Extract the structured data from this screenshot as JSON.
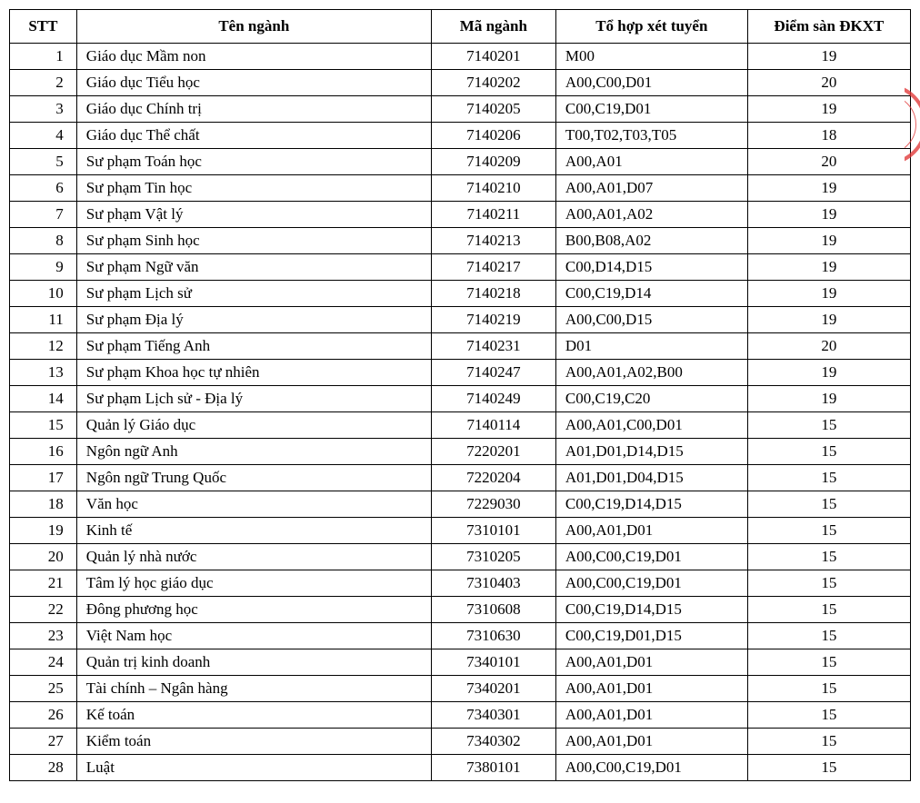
{
  "table": {
    "headers": {
      "stt": "STT",
      "name": "Tên ngành",
      "code": "Mã ngành",
      "combo": "Tổ hợp xét tuyển",
      "score": "Điểm sàn ĐKXT"
    },
    "rows": [
      {
        "stt": "1",
        "name": "Giáo dục Mầm non",
        "code": "7140201",
        "combo": "M00",
        "score": "19"
      },
      {
        "stt": "2",
        "name": "Giáo dục Tiểu học",
        "code": "7140202",
        "combo": "A00,C00,D01",
        "score": "20"
      },
      {
        "stt": "3",
        "name": "Giáo dục Chính trị",
        "code": "7140205",
        "combo": "C00,C19,D01",
        "score": "19"
      },
      {
        "stt": "4",
        "name": "Giáo dục Thể chất",
        "code": "7140206",
        "combo": "T00,T02,T03,T05",
        "score": "18"
      },
      {
        "stt": "5",
        "name": "Sư phạm Toán học",
        "code": "7140209",
        "combo": "A00,A01",
        "score": "20"
      },
      {
        "stt": "6",
        "name": "Sư phạm Tin học",
        "code": "7140210",
        "combo": "A00,A01,D07",
        "score": "19"
      },
      {
        "stt": "7",
        "name": "Sư phạm Vật lý",
        "code": "7140211",
        "combo": "A00,A01,A02",
        "score": "19"
      },
      {
        "stt": "8",
        "name": "Sư phạm Sinh học",
        "code": "7140213",
        "combo": "B00,B08,A02",
        "score": "19"
      },
      {
        "stt": "9",
        "name": "Sư phạm Ngữ văn",
        "code": "7140217",
        "combo": "C00,D14,D15",
        "score": "19"
      },
      {
        "stt": "10",
        "name": "Sư phạm Lịch sử",
        "code": "7140218",
        "combo": "C00,C19,D14",
        "score": "19"
      },
      {
        "stt": "11",
        "name": "Sư phạm Địa lý",
        "code": "7140219",
        "combo": "A00,C00,D15",
        "score": "19"
      },
      {
        "stt": "12",
        "name": "Sư phạm Tiếng Anh",
        "code": "7140231",
        "combo": "D01",
        "score": "20"
      },
      {
        "stt": "13",
        "name": "Sư phạm Khoa học tự nhiên",
        "code": "7140247",
        "combo": "A00,A01,A02,B00",
        "score": "19"
      },
      {
        "stt": "14",
        "name": "Sư phạm Lịch sử - Địa lý",
        "code": "7140249",
        "combo": "C00,C19,C20",
        "score": "19"
      },
      {
        "stt": "15",
        "name": "Quản lý Giáo dục",
        "code": "7140114",
        "combo": "A00,A01,C00,D01",
        "score": "15"
      },
      {
        "stt": "16",
        "name": "Ngôn ngữ Anh",
        "code": "7220201",
        "combo": "A01,D01,D14,D15",
        "score": "15"
      },
      {
        "stt": "17",
        "name": "Ngôn ngữ Trung Quốc",
        "code": "7220204",
        "combo": "A01,D01,D04,D15",
        "score": "15"
      },
      {
        "stt": "18",
        "name": "Văn học",
        "code": "7229030",
        "combo": "C00,C19,D14,D15",
        "score": "15"
      },
      {
        "stt": "19",
        "name": "Kinh tế",
        "code": "7310101",
        "combo": "A00,A01,D01",
        "score": "15"
      },
      {
        "stt": "20",
        "name": "Quản lý nhà nước",
        "code": "7310205",
        "combo": "A00,C00,C19,D01",
        "score": "15"
      },
      {
        "stt": "21",
        "name": "Tâm lý học giáo dục",
        "code": "7310403",
        "combo": "A00,C00,C19,D01",
        "score": "15"
      },
      {
        "stt": "22",
        "name": "Đông phương học",
        "code": "7310608",
        "combo": "C00,C19,D14,D15",
        "score": "15"
      },
      {
        "stt": "23",
        "name": "Việt Nam học",
        "code": "7310630",
        "combo": "C00,C19,D01,D15",
        "score": "15"
      },
      {
        "stt": "24",
        "name": "Quản trị kinh doanh",
        "code": "7340101",
        "combo": "A00,A01,D01",
        "score": "15"
      },
      {
        "stt": "25",
        "name": "Tài chính – Ngân hàng",
        "code": "7340201",
        "combo": "A00,A01,D01",
        "score": "15"
      },
      {
        "stt": "26",
        "name": "Kế toán",
        "code": "7340301",
        "combo": "A00,A01,D01",
        "score": "15"
      },
      {
        "stt": "27",
        "name": "Kiểm toán",
        "code": "7340302",
        "combo": "A00,A01,D01",
        "score": "15"
      },
      {
        "stt": "28",
        "name": "Luật",
        "code": "7380101",
        "combo": "A00,C00,C19,D01",
        "score": "15"
      }
    ],
    "styling": {
      "font_family": "Times New Roman",
      "header_fontsize": 17,
      "cell_fontsize": 17,
      "border_color": "#000000",
      "background_color": "#ffffff",
      "text_color": "#000000",
      "stamp_color": "#e03030",
      "column_widths": {
        "stt": 70,
        "name": 370,
        "code": 130,
        "combo": 200,
        "score": 170
      },
      "alignments": {
        "stt": "right",
        "name": "left",
        "code": "center",
        "combo": "left",
        "score": "center",
        "header": "center"
      }
    }
  }
}
